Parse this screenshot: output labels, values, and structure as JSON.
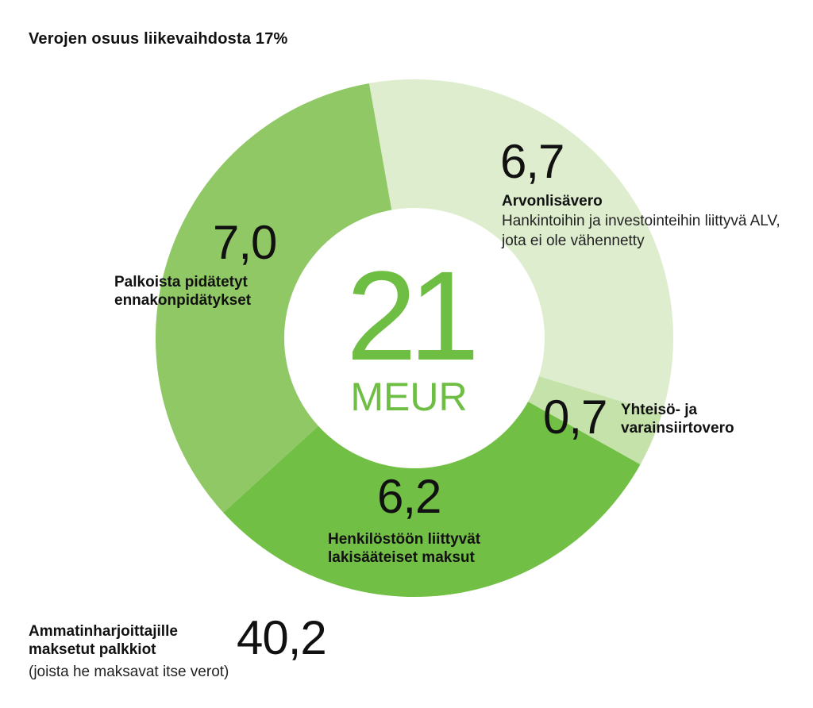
{
  "title": "Verojen osuus liikevaihdosta 17%",
  "center": {
    "value": "21",
    "unit": "MEUR"
  },
  "colors": {
    "Arvonlisävero": "#ddedcd",
    "Yhteisö- ja varainsiirtovero": "#c4e2aa",
    "Henkilöstöön liittyvät lakisääteiset maksut": "#72bf45",
    "Palkoista pidätetyt ennakonpidätykset": "#90c866",
    "center": "#6fbe44"
  },
  "chart_data": {
    "type": "pie",
    "donut": true,
    "title": "Verojen osuus liikevaihdosta 17%",
    "total_label": "21 MEUR",
    "slices": [
      {
        "label": "Arvonlisävero",
        "value_label": "6,7",
        "value": 6.7,
        "description": "Hankintoihin ja investointeihin liittyvä ALV, jota ei ole vähennetty"
      },
      {
        "label": "Yhteisö- ja varainsiirtovero",
        "value_label": "0,7",
        "value": 0.7
      },
      {
        "label": "Henkilöstöön liittyvät lakisääteiset maksut",
        "value_label": "6,2",
        "value": 6.2
      },
      {
        "label": "Palkoista pidätetyt ennakonpidätykset",
        "value_label": "7,0",
        "value": 7.0
      }
    ],
    "extra": {
      "label_line1": "Ammatinharjoittajille",
      "label_line2": "maksetut palkkiot",
      "note": "(joista he maksavat itse verot)",
      "value_label": "40,2",
      "value": 40.2
    }
  }
}
